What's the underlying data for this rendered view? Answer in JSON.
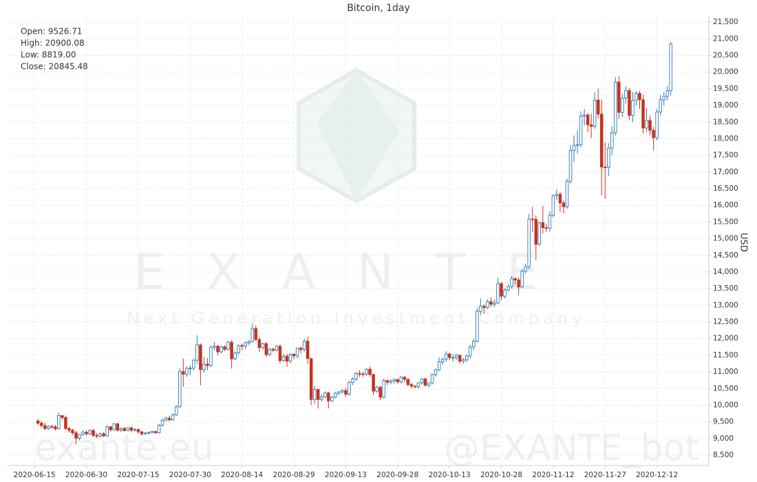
{
  "chart_data": {
    "type": "candlestick",
    "title": "Bitcoin, 1day",
    "y_label": "USD",
    "info": [
      "Open: 9526.71",
      "High: 20900.08",
      "Low: 8819.00",
      "Close: 20845.48"
    ],
    "watermark": {
      "brand": "EXANTE",
      "tagline": "Next Generation Investment Company",
      "site": "exante.eu",
      "bot": "@EXANTE_bot"
    },
    "up_color": "#2b78b4",
    "down_color": "#c8321e",
    "grid": true,
    "xlim": [
      "2020-06-07",
      "2020-12-27"
    ],
    "xticks": [
      "2020-06-15",
      "2020-06-30",
      "2020-07-15",
      "2020-07-30",
      "2020-08-14",
      "2020-08-29",
      "2020-09-13",
      "2020-09-28",
      "2020-10-13",
      "2020-10-28",
      "2020-11-12",
      "2020-11-27",
      "2020-12-12"
    ],
    "ylim": [
      8190,
      21710
    ],
    "yticks": [
      {
        "value": 8500,
        "label": "8,500"
      },
      {
        "value": 9000,
        "label": "9,000"
      },
      {
        "value": 9500,
        "label": "9,500"
      },
      {
        "value": 10000,
        "label": "10,000"
      },
      {
        "value": 10500,
        "label": "10,500"
      },
      {
        "value": 11000,
        "label": "11,000"
      },
      {
        "value": 11500,
        "label": "11,500"
      },
      {
        "value": 12000,
        "label": "12,000"
      },
      {
        "value": 12500,
        "label": "12,500"
      },
      {
        "value": 13000,
        "label": "13,000"
      },
      {
        "value": 13500,
        "label": "13,500"
      },
      {
        "value": 14000,
        "label": "14,000"
      },
      {
        "value": 14500,
        "label": "14,500"
      },
      {
        "value": 15000,
        "label": "15,000"
      },
      {
        "value": 15500,
        "label": "15,500"
      },
      {
        "value": 16000,
        "label": "16,000"
      },
      {
        "value": 16500,
        "label": "16,500"
      },
      {
        "value": 17000,
        "label": "17,000"
      },
      {
        "value": 17500,
        "label": "17,500"
      },
      {
        "value": 18000,
        "label": "18,000"
      },
      {
        "value": 18500,
        "label": "18,500"
      },
      {
        "value": 19000,
        "label": "19,000"
      },
      {
        "value": 19500,
        "label": "19,500"
      },
      {
        "value": 20000,
        "label": "20,000"
      },
      {
        "value": 20500,
        "label": "20,500"
      },
      {
        "value": 21000,
        "label": "21,000"
      },
      {
        "value": 21500,
        "label": "21,500"
      }
    ],
    "x": [
      "2020-06-16",
      "2020-06-17",
      "2020-06-18",
      "2020-06-19",
      "2020-06-20",
      "2020-06-21",
      "2020-06-22",
      "2020-06-23",
      "2020-06-24",
      "2020-06-25",
      "2020-06-26",
      "2020-06-27",
      "2020-06-28",
      "2020-06-29",
      "2020-06-30",
      "2020-07-01",
      "2020-07-02",
      "2020-07-03",
      "2020-07-04",
      "2020-07-05",
      "2020-07-06",
      "2020-07-07",
      "2020-07-08",
      "2020-07-09",
      "2020-07-10",
      "2020-07-11",
      "2020-07-12",
      "2020-07-13",
      "2020-07-14",
      "2020-07-15",
      "2020-07-16",
      "2020-07-17",
      "2020-07-18",
      "2020-07-19",
      "2020-07-20",
      "2020-07-21",
      "2020-07-22",
      "2020-07-23",
      "2020-07-24",
      "2020-07-25",
      "2020-07-26",
      "2020-07-27",
      "2020-07-28",
      "2020-07-29",
      "2020-07-30",
      "2020-07-31",
      "2020-08-01",
      "2020-08-02",
      "2020-08-03",
      "2020-08-04",
      "2020-08-05",
      "2020-08-06",
      "2020-08-07",
      "2020-08-08",
      "2020-08-09",
      "2020-08-10",
      "2020-08-11",
      "2020-08-12",
      "2020-08-13",
      "2020-08-14",
      "2020-08-15",
      "2020-08-16",
      "2020-08-17",
      "2020-08-18",
      "2020-08-19",
      "2020-08-20",
      "2020-08-21",
      "2020-08-22",
      "2020-08-23",
      "2020-08-24",
      "2020-08-25",
      "2020-08-26",
      "2020-08-27",
      "2020-08-28",
      "2020-08-29",
      "2020-08-30",
      "2020-08-31",
      "2020-09-01",
      "2020-09-02",
      "2020-09-03",
      "2020-09-04",
      "2020-09-05",
      "2020-09-06",
      "2020-09-07",
      "2020-09-08",
      "2020-09-09",
      "2020-09-10",
      "2020-09-11",
      "2020-09-12",
      "2020-09-13",
      "2020-09-14",
      "2020-09-15",
      "2020-09-16",
      "2020-09-17",
      "2020-09-18",
      "2020-09-19",
      "2020-09-20",
      "2020-09-21",
      "2020-09-22",
      "2020-09-23",
      "2020-09-24",
      "2020-09-25",
      "2020-09-26",
      "2020-09-27",
      "2020-09-28",
      "2020-09-29",
      "2020-09-30",
      "2020-10-01",
      "2020-10-02",
      "2020-10-03",
      "2020-10-04",
      "2020-10-05",
      "2020-10-06",
      "2020-10-07",
      "2020-10-08",
      "2020-10-09",
      "2020-10-10",
      "2020-10-11",
      "2020-10-12",
      "2020-10-13",
      "2020-10-14",
      "2020-10-15",
      "2020-10-16",
      "2020-10-17",
      "2020-10-18",
      "2020-10-19",
      "2020-10-20",
      "2020-10-21",
      "2020-10-22",
      "2020-10-23",
      "2020-10-24",
      "2020-10-25",
      "2020-10-26",
      "2020-10-27",
      "2020-10-28",
      "2020-10-29",
      "2020-10-30",
      "2020-10-31",
      "2020-11-01",
      "2020-11-02",
      "2020-11-03",
      "2020-11-04",
      "2020-11-05",
      "2020-11-06",
      "2020-11-07",
      "2020-11-08",
      "2020-11-09",
      "2020-11-10",
      "2020-11-11",
      "2020-11-12",
      "2020-11-13",
      "2020-11-14",
      "2020-11-15",
      "2020-11-16",
      "2020-11-17",
      "2020-11-18",
      "2020-11-19",
      "2020-11-20",
      "2020-11-21",
      "2020-11-22",
      "2020-11-23",
      "2020-11-24",
      "2020-11-25",
      "2020-11-26",
      "2020-11-27",
      "2020-11-28",
      "2020-11-29",
      "2020-11-30",
      "2020-12-01",
      "2020-12-02",
      "2020-12-03",
      "2020-12-04",
      "2020-12-05",
      "2020-12-06",
      "2020-12-07",
      "2020-12-08",
      "2020-12-09",
      "2020-12-10",
      "2020-12-11",
      "2020-12-12",
      "2020-12-13",
      "2020-12-14",
      "2020-12-15",
      "2020-12-16"
    ],
    "open": [
      9526.71,
      9460,
      9390,
      9300,
      9360,
      9350,
      9290,
      9690,
      9630,
      9300,
      9250,
      9170,
      9010,
      9120,
      9190,
      9140,
      9240,
      9090,
      9070,
      9140,
      9080,
      9350,
      9260,
      9440,
      9250,
      9300,
      9240,
      9320,
      9250,
      9270,
      9200,
      9140,
      9160,
      9180,
      9210,
      9170,
      9400,
      9550,
      9610,
      9560,
      9710,
      9950,
      11010,
      10930,
      11110,
      11110,
      11350,
      11810,
      11070,
      11230,
      11190,
      11740,
      11770,
      11600,
      11750,
      11680,
      11890,
      11390,
      11570,
      11790,
      11770,
      11870,
      11910,
      12300,
      11970,
      11730,
      11850,
      11520,
      11680,
      11650,
      11770,
      11340,
      11470,
      11320,
      11530,
      11480,
      11710,
      11670,
      11920,
      11400,
      10170,
      10470,
      10170,
      10250,
      10370,
      10130,
      10240,
      10360,
      10400,
      10440,
      10330,
      10680,
      10790,
      10950,
      10940,
      10930,
      11080,
      10920,
      10420,
      10540,
      10240,
      10740,
      10690,
      10730,
      10770,
      10700,
      10840,
      10780,
      10620,
      10570,
      10550,
      10670,
      10790,
      10600,
      10670,
      10920,
      11060,
      11300,
      11380,
      11540,
      11430,
      11430,
      11500,
      11320,
      11360,
      11480,
      11750,
      11920,
      12820,
      12970,
      12930,
      13110,
      13030,
      13070,
      13650,
      13270,
      13460,
      13560,
      13800,
      13760,
      13550,
      14020,
      14150,
      15590,
      15580,
      14830,
      15480,
      15330,
      15310,
      15700,
      16290,
      16330,
      16070,
      15960,
      16720,
      17650,
      17800,
      17820,
      18680,
      18710,
      18420,
      18370,
      19160,
      18740,
      17150,
      17140,
      17720,
      18180,
      19700,
      18790,
      19220,
      19450,
      18700,
      19150,
      19360,
      19170,
      18320,
      18550,
      18250,
      18030,
      18800,
      19170,
      19270,
      19440
    ],
    "high": [
      9590,
      9530,
      9470,
      9400,
      9420,
      9410,
      9780,
      9700,
      9690,
      9350,
      9290,
      9230,
      9130,
      9240,
      9240,
      9280,
      9300,
      9160,
      9180,
      9200,
      9400,
      9380,
      9450,
      9470,
      9330,
      9350,
      9340,
      9360,
      9320,
      9300,
      9230,
      9200,
      9210,
      9230,
      9240,
      9440,
      9600,
      9660,
      9680,
      9750,
      10000,
      11100,
      11400,
      11160,
      11200,
      11400,
      12100,
      11860,
      11450,
      11420,
      11800,
      11900,
      11810,
      11780,
      11800,
      11930,
      11950,
      11620,
      11830,
      11850,
      11920,
      11950,
      12450,
      12400,
      12050,
      11880,
      11900,
      11720,
      11730,
      11800,
      11820,
      11550,
      11550,
      11560,
      11560,
      11730,
      11760,
      11990,
      12060,
      11420,
      10580,
      10500,
      10330,
      10420,
      10400,
      10280,
      10400,
      10420,
      10480,
      10520,
      10730,
      10840,
      11000,
      11050,
      11000,
      11120,
      11160,
      10950,
      10580,
      10580,
      10790,
      10770,
      10780,
      10800,
      10800,
      10870,
      10880,
      10800,
      10670,
      10600,
      10690,
      10810,
      10820,
      10680,
      10950,
      11100,
      11440,
      11420,
      11620,
      11560,
      11530,
      11550,
      11520,
      11420,
      11520,
      11800,
      12000,
      12930,
      13200,
      13030,
      13180,
      13240,
      13170,
      13830,
      13700,
      13510,
      13640,
      13880,
      13830,
      13830,
      14080,
      14250,
      15750,
      15950,
      15700,
      15520,
      15980,
      15450,
      15820,
      16330,
      16480,
      16400,
      16150,
      16800,
      17800,
      18100,
      18250,
      18830,
      18900,
      18780,
      18750,
      19400,
      19500,
      19180,
      17900,
      17870,
      18380,
      19850,
      19880,
      19350,
      19580,
      19520,
      19400,
      19420,
      19440,
      19320,
      18930,
      18700,
      18350,
      18900,
      19320,
      19400,
      19580,
      20900.08
    ],
    "low": [
      9400,
      9320,
      9250,
      9260,
      9290,
      9230,
      9260,
      9560,
      9260,
      9180,
      9110,
      8819,
      8940,
      9080,
      9080,
      9110,
      9040,
      9010,
      9040,
      9040,
      9060,
      9200,
      9240,
      9200,
      9200,
      9200,
      9220,
      9180,
      9200,
      9150,
      9080,
      9110,
      9130,
      9150,
      9140,
      9150,
      9360,
      9520,
      9510,
      9530,
      9680,
      9920,
      10550,
      10850,
      10900,
      11050,
      11240,
      10600,
      10970,
      11050,
      11150,
      11650,
      11500,
      11560,
      11620,
      11640,
      11100,
      11350,
      11520,
      11650,
      11680,
      11800,
      11880,
      11930,
      11600,
      11660,
      11450,
      11480,
      11580,
      11610,
      11250,
      11300,
      11150,
      11260,
      11380,
      11400,
      11550,
      11600,
      11250,
      10000,
      10030,
      9900,
      10100,
      10200,
      9900,
      10100,
      10200,
      10300,
      10350,
      10250,
      10290,
      10600,
      10730,
      10850,
      10850,
      10880,
      10850,
      10300,
      10370,
      10150,
      10200,
      10600,
      10630,
      10650,
      10650,
      10650,
      10690,
      10570,
      10500,
      10500,
      10500,
      10620,
      10550,
      10530,
      10620,
      10860,
      11020,
      11200,
      11300,
      11350,
      11300,
      11360,
      11240,
      11240,
      11300,
      11400,
      11650,
      11890,
      12720,
      12750,
      12880,
      12950,
      12950,
      13030,
      13150,
      13200,
      13420,
      13500,
      13620,
      13300,
      13520,
      13950,
      14080,
      15200,
      14350,
      14780,
      15150,
      15200,
      15200,
      15640,
      16150,
      15800,
      15750,
      15900,
      16650,
      17300,
      17550,
      17750,
      18400,
      18200,
      18020,
      18300,
      18600,
      16300,
      16200,
      16880,
      17500,
      18100,
      18600,
      18650,
      19050,
      18550,
      18500,
      19000,
      18900,
      18150,
      18200,
      18100,
      17650,
      17950,
      18700,
      19000,
      19150,
      19300
    ],
    "close": [
      9460,
      9390,
      9300,
      9360,
      9350,
      9290,
      9690,
      9630,
      9300,
      9250,
      9170,
      9010,
      9120,
      9190,
      9140,
      9240,
      9090,
      9070,
      9140,
      9080,
      9350,
      9260,
      9440,
      9250,
      9300,
      9240,
      9320,
      9250,
      9270,
      9200,
      9140,
      9160,
      9180,
      9210,
      9170,
      9400,
      9550,
      9610,
      9560,
      9710,
      9950,
      11010,
      10930,
      11110,
      11110,
      11350,
      11810,
      11070,
      11230,
      11190,
      11740,
      11770,
      11600,
      11750,
      11680,
      11890,
      11390,
      11570,
      11790,
      11770,
      11870,
      11910,
      12300,
      11970,
      11730,
      11850,
      11520,
      11680,
      11650,
      11770,
      11340,
      11470,
      11320,
      11530,
      11480,
      11710,
      11670,
      11920,
      11400,
      10170,
      10470,
      10170,
      10250,
      10370,
      10130,
      10240,
      10360,
      10400,
      10440,
      10330,
      10680,
      10790,
      10950,
      10940,
      10930,
      11080,
      10920,
      10420,
      10540,
      10240,
      10740,
      10690,
      10730,
      10770,
      10700,
      10840,
      10780,
      10620,
      10570,
      10550,
      10670,
      10790,
      10600,
      10670,
      10920,
      11060,
      11300,
      11380,
      11540,
      11430,
      11430,
      11500,
      11320,
      11360,
      11480,
      11750,
      11920,
      12820,
      12970,
      12930,
      13110,
      13030,
      13070,
      13650,
      13270,
      13460,
      13560,
      13800,
      13760,
      13550,
      14020,
      14150,
      15590,
      15580,
      14830,
      15480,
      15330,
      15310,
      15700,
      16290,
      16330,
      16070,
      15960,
      16720,
      17650,
      17800,
      17820,
      18680,
      18710,
      18420,
      18370,
      19160,
      18740,
      17150,
      17140,
      17720,
      18180,
      19700,
      18790,
      19220,
      19450,
      18700,
      19150,
      19360,
      19170,
      18320,
      18550,
      18250,
      18030,
      18800,
      19170,
      19270,
      19440,
      20845.48
    ]
  }
}
